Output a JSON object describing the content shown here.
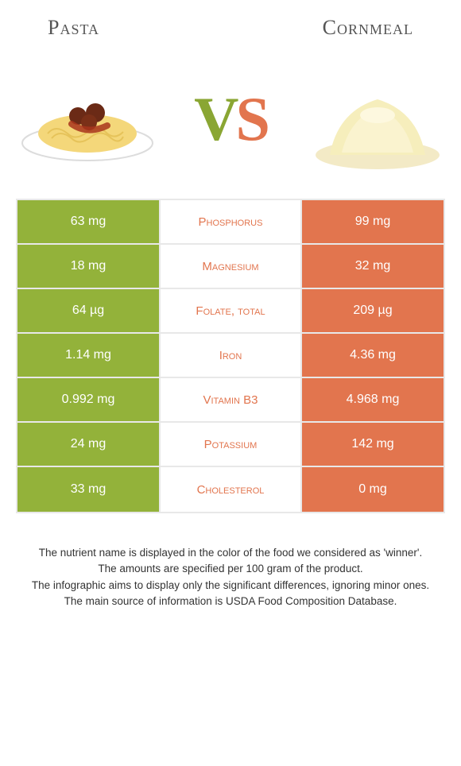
{
  "header": {
    "left": "Pasta",
    "right": "Cornmeal"
  },
  "vs": {
    "v": "V",
    "s": "S"
  },
  "colors": {
    "left_bg": "#93b23a",
    "right_bg": "#e2754e",
    "mid_text_winner_left": "#93b23a",
    "mid_text_winner_right": "#e2754e"
  },
  "table": {
    "rows": [
      {
        "left": "63 mg",
        "label": "Phosphorus",
        "right": "99 mg",
        "winner": "right"
      },
      {
        "left": "18 mg",
        "label": "Magnesium",
        "right": "32 mg",
        "winner": "right"
      },
      {
        "left": "64 µg",
        "label": "Folate, total",
        "right": "209 µg",
        "winner": "right"
      },
      {
        "left": "1.14 mg",
        "label": "Iron",
        "right": "4.36 mg",
        "winner": "right"
      },
      {
        "left": "0.992 mg",
        "label": "Vitamin B3",
        "right": "4.968 mg",
        "winner": "right"
      },
      {
        "left": "24 mg",
        "label": "Potassium",
        "right": "142 mg",
        "winner": "right"
      },
      {
        "left": "33 mg",
        "label": "Cholesterol",
        "right": "0 mg",
        "winner": "right"
      }
    ]
  },
  "footer": {
    "line1": "The nutrient name is displayed in the color of the food we considered as 'winner'.",
    "line2": "The amounts are specified per 100 gram of the product.",
    "line3": "The infographic aims to display only the significant differences, ignoring minor ones.",
    "line4": "The main source of information is USDA Food Composition Database."
  }
}
